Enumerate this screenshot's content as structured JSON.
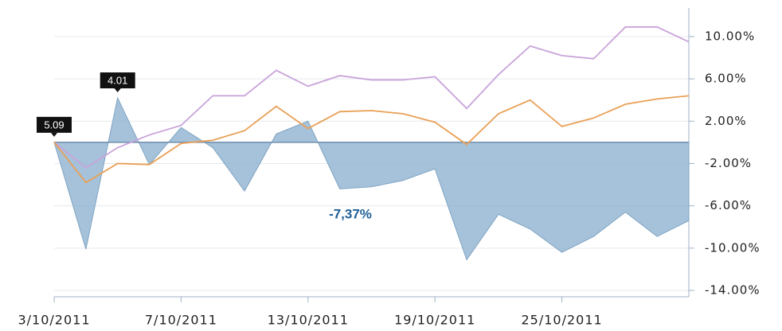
{
  "chart_data": {
    "type": "line",
    "categories": [
      "3/10/2011",
      null,
      null,
      null,
      "7/10/2011",
      null,
      null,
      null,
      "13/10/2011",
      null,
      null,
      null,
      "19/10/2011",
      null,
      null,
      null,
      "25/10/2011",
      null,
      null,
      null,
      null
    ],
    "series": [
      {
        "color": "#8fb3d1",
        "fill": true,
        "values": [
          0,
          -10.1,
          4.2,
          -2.1,
          1.4,
          -0.5,
          -4.6,
          0.8,
          2.0,
          -4.4,
          -4.2,
          -3.6,
          -2.5,
          -11.1,
          -6.8,
          -8.2,
          -10.4,
          -8.9,
          -6.6,
          -8.9,
          -7.4
        ]
      },
      {
        "color": "#c9a3da",
        "values": [
          0,
          -2.4,
          -0.5,
          0.7,
          1.6,
          4.4,
          4.4,
          6.8,
          5.3,
          6.3,
          5.9,
          5.9,
          6.2,
          3.2,
          6.4,
          9.1,
          8.2,
          7.9,
          10.9,
          10.9,
          9.5
        ]
      },
      {
        "color": "#e9a056",
        "values": [
          0,
          -3.8,
          -2.0,
          -2.1,
          -0.1,
          0.2,
          1.1,
          3.4,
          1.3,
          2.9,
          3.0,
          2.7,
          1.9,
          -0.2,
          2.7,
          4.0,
          1.5,
          2.3,
          3.6,
          4.1,
          4.4
        ]
      }
    ],
    "ylim": [
      -14.6,
      12.7
    ],
    "yticks": [
      {
        "value": 10,
        "label": "10.00%"
      },
      {
        "value": 6,
        "label": "6.00%"
      },
      {
        "value": 2,
        "label": "2.00%"
      },
      {
        "value": -2,
        "label": "-2.00%"
      },
      {
        "value": -6,
        "label": "-6.00%"
      },
      {
        "value": -10,
        "label": "-10.00%"
      },
      {
        "value": -14,
        "label": "-14.00%"
      }
    ],
    "grid": true,
    "annotations": [
      "5.09",
      "4.01",
      "-7,37%"
    ]
  }
}
